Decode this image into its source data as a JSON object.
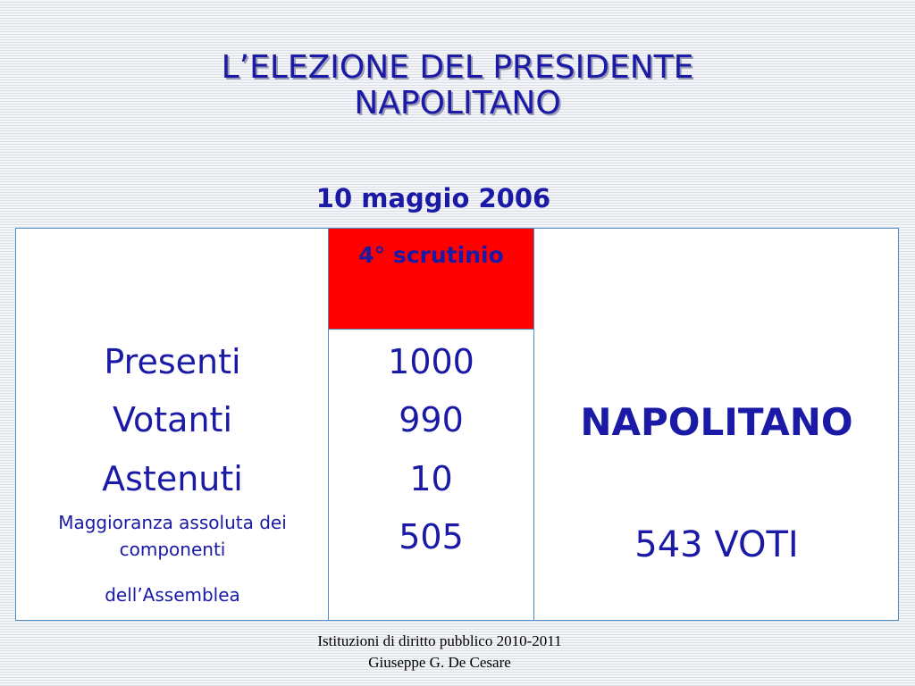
{
  "slide": {
    "title_line1": "L’ELEZIONE DEL PRESIDENTE",
    "title_line2": "NAPOLITANO",
    "date": "10 maggio 2006"
  },
  "table": {
    "round_header": "4° scrutinio",
    "rows": [
      {
        "label": "Presenti",
        "value": "1000"
      },
      {
        "label": "Votanti",
        "value": "990"
      },
      {
        "label": "Astenuti",
        "value": "10"
      },
      {
        "label_line1": "Maggioranza assoluta dei",
        "label_line2": "componenti",
        "label_line3": "dell’Assemblea",
        "value": "505"
      }
    ],
    "winner": "NAPOLITANO",
    "winner_votes": "543 VOTI"
  },
  "footer": {
    "line1": "Istituzioni di diritto pubblico 2010-2011",
    "line2": "Giuseppe G. De Cesare"
  },
  "colors": {
    "text_blue": "#1a1aa6",
    "header_red": "#ff0000",
    "border_blue": "#4f8ec4"
  }
}
